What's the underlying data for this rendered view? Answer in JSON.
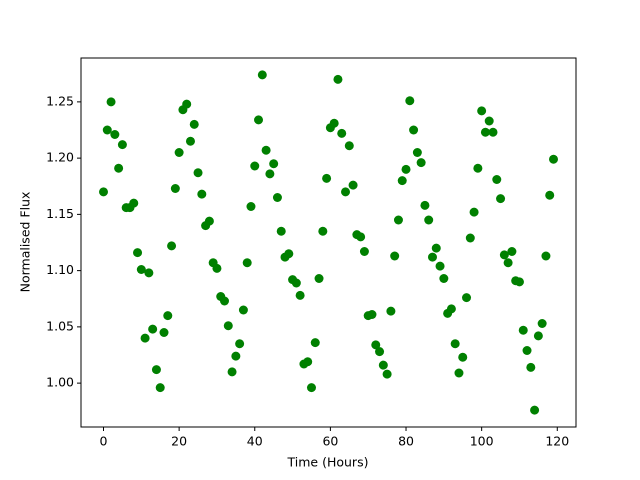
{
  "chart_data": {
    "type": "scatter",
    "xlabel": "Time (Hours)",
    "ylabel": "Normalised Flux",
    "color": "#008000",
    "x": [
      0,
      1,
      2,
      3,
      4,
      5,
      6,
      7,
      8,
      9,
      10,
      11,
      12,
      13,
      14,
      15,
      16,
      17,
      18,
      19,
      20,
      21,
      22,
      23,
      24,
      25,
      26,
      27,
      28,
      29,
      30,
      31,
      32,
      33,
      34,
      35,
      36,
      37,
      38,
      39,
      40,
      41,
      42,
      43,
      44,
      45,
      46,
      47,
      48,
      49,
      50,
      51,
      52,
      53,
      54,
      55,
      56,
      57,
      58,
      59,
      60,
      61,
      62,
      63,
      64,
      65,
      66,
      67,
      68,
      69,
      70,
      71,
      72,
      73,
      74,
      75,
      76,
      77,
      78,
      79,
      80,
      81,
      82,
      83,
      84,
      85,
      86,
      87,
      88,
      89,
      90,
      91,
      92,
      93,
      94,
      95,
      96,
      97,
      98,
      99,
      100,
      101,
      102,
      103,
      104,
      105,
      106,
      107,
      108,
      109,
      110,
      111,
      112,
      113,
      114,
      115,
      116,
      117,
      118,
      119
    ],
    "values": [
      1.17,
      1.225,
      1.25,
      1.221,
      1.191,
      1.212,
      1.156,
      1.156,
      1.16,
      1.116,
      1.101,
      1.04,
      1.098,
      1.048,
      1.012,
      0.996,
      1.045,
      1.06,
      1.122,
      1.173,
      1.205,
      1.243,
      1.248,
      1.215,
      1.23,
      1.187,
      1.168,
      1.14,
      1.144,
      1.107,
      1.102,
      1.077,
      1.073,
      1.051,
      1.01,
      1.024,
      1.035,
      1.065,
      1.107,
      1.157,
      1.193,
      1.234,
      1.274,
      1.207,
      1.186,
      1.195,
      1.165,
      1.135,
      1.112,
      1.115,
      1.092,
      1.089,
      1.078,
      1.017,
      1.019,
      0.996,
      1.036,
      1.093,
      1.135,
      1.182,
      1.227,
      1.231,
      1.27,
      1.222,
      1.17,
      1.211,
      1.176,
      1.132,
      1.13,
      1.117,
      1.06,
      1.061,
      1.034,
      1.028,
      1.016,
      1.008,
      1.064,
      1.113,
      1.145,
      1.18,
      1.19,
      1.251,
      1.225,
      1.205,
      1.196,
      1.158,
      1.145,
      1.112,
      1.12,
      1.104,
      1.093,
      1.062,
      1.066,
      1.035,
      1.009,
      1.023,
      1.076,
      1.129,
      1.152,
      1.191,
      1.242,
      1.223,
      1.233,
      1.223,
      1.181,
      1.164,
      1.114,
      1.107,
      1.117,
      1.091,
      1.09,
      1.047,
      1.029,
      1.014,
      0.976,
      1.042,
      1.053,
      1.113,
      1.167,
      1.199
    ],
    "xlim": [
      -5.95,
      124.95
    ],
    "xticks": [
      0,
      20,
      40,
      60,
      80,
      100,
      120
    ],
    "ylim": [
      0.961,
      1.289
    ],
    "yticks": [
      {
        "value": 1.0,
        "label": "1.00"
      },
      {
        "value": 1.05,
        "label": "1.05"
      },
      {
        "value": 1.1,
        "label": "1.10"
      },
      {
        "value": 1.15,
        "label": "1.15"
      },
      {
        "value": 1.2,
        "label": "1.20"
      },
      {
        "value": 1.25,
        "label": "1.25"
      }
    ]
  }
}
